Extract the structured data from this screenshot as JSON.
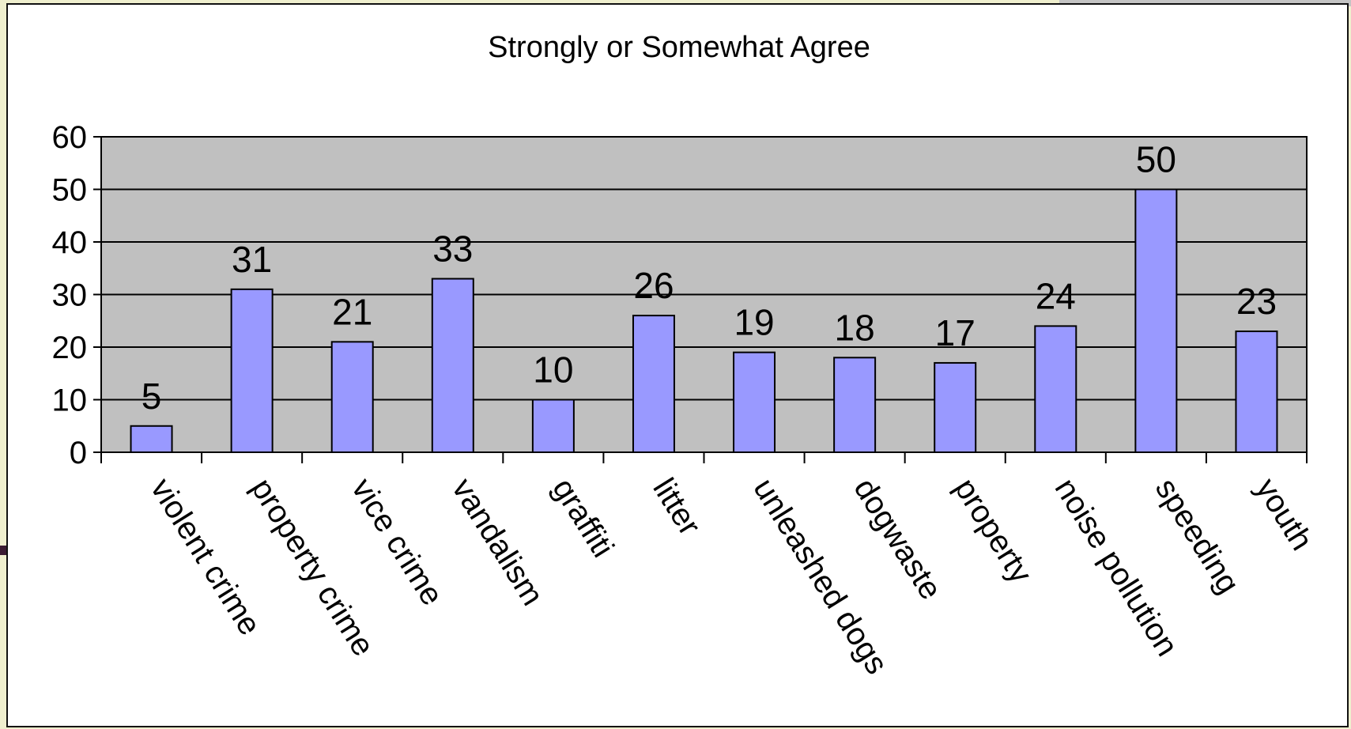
{
  "chart_data": {
    "type": "bar",
    "title": "Strongly or Somewhat Agree",
    "xlabel": "",
    "ylabel": "",
    "categories": [
      "violent crime",
      "property crime",
      "vice crime",
      "vandalism",
      "graffiti",
      "litter",
      "unleashed dogs",
      "dogwaste",
      "property",
      "noise pollution",
      "speeding",
      "youth"
    ],
    "values": [
      5,
      31,
      21,
      33,
      10,
      26,
      19,
      18,
      17,
      24,
      50,
      23
    ],
    "ylim": [
      0,
      60
    ],
    "yticks": [
      0,
      10,
      20,
      30,
      40,
      50,
      60
    ],
    "grid": true,
    "legend": "none",
    "colors": {
      "bar": "#9999ff",
      "plot_background": "#c0c0c0",
      "gridline": "#000000"
    }
  }
}
